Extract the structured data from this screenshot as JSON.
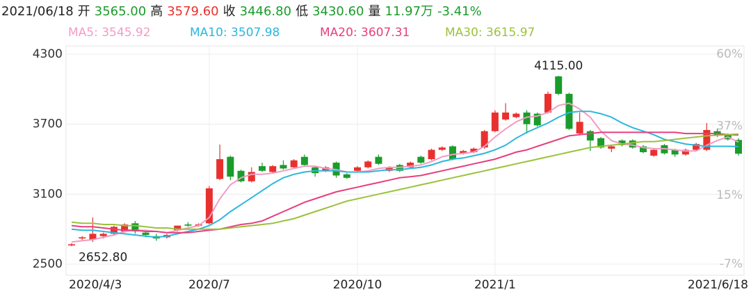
{
  "header": [
    {
      "text": "2021/06/18",
      "color": "#222"
    },
    {
      "text": "开",
      "color": "#222"
    },
    {
      "text": "3565.00",
      "color": "#1a9c2b"
    },
    {
      "text": "高",
      "color": "#222"
    },
    {
      "text": "3579.60",
      "color": "#e8312f"
    },
    {
      "text": "收",
      "color": "#222"
    },
    {
      "text": "3446.80",
      "color": "#1a9c2b"
    },
    {
      "text": "低",
      "color": "#222"
    },
    {
      "text": "3430.60",
      "color": "#1a9c2b"
    },
    {
      "text": "量",
      "color": "#222"
    },
    {
      "text": "11.97万",
      "color": "#1a9c2b"
    },
    {
      "text": "-3.41%",
      "color": "#1a9c2b"
    }
  ],
  "chart_data": {
    "type": "candlestick",
    "categories": [
      "2020/4/3",
      null,
      null,
      null,
      null,
      null,
      null,
      null,
      null,
      null,
      null,
      null,
      null,
      "2020/7",
      null,
      null,
      null,
      null,
      null,
      null,
      null,
      null,
      null,
      null,
      null,
      null,
      null,
      "2020/10",
      null,
      null,
      null,
      null,
      null,
      null,
      null,
      null,
      null,
      null,
      null,
      null,
      "2021/1",
      null,
      null,
      null,
      null,
      null,
      null,
      null,
      null,
      null,
      null,
      null,
      null,
      null,
      null,
      null,
      null,
      null,
      null,
      null,
      null,
      null,
      null,
      "2021/6/18"
    ],
    "up_color": "#e8312f",
    "down_color": "#1a9c2b",
    "open": [
      2660,
      2720,
      2710,
      2740,
      2760,
      2780,
      2850,
      2770,
      2740,
      2730,
      2790,
      2840,
      2830,
      2850,
      3230,
      3420,
      3300,
      3210,
      3340,
      3290,
      3350,
      3330,
      3420,
      3330,
      3300,
      3370,
      3270,
      3300,
      3330,
      3420,
      3300,
      3350,
      3330,
      3420,
      3400,
      3480,
      3510,
      3450,
      3460,
      3500,
      3640,
      3740,
      3760,
      3800,
      3790,
      3800,
      4110,
      3960,
      3620,
      3640,
      3580,
      3490,
      3560,
      3560,
      3510,
      3430,
      3520,
      3480,
      3440,
      3480,
      3480,
      3640,
      3610,
      3565
    ],
    "high": [
      2680,
      2740,
      2900,
      2770,
      2830,
      2850,
      2870,
      2790,
      2760,
      2760,
      2830,
      2860,
      2850,
      3170,
      3525,
      3430,
      3310,
      3330,
      3370,
      3350,
      3390,
      3400,
      3440,
      3340,
      3340,
      3380,
      3280,
      3340,
      3390,
      3440,
      3340,
      3360,
      3380,
      3430,
      3490,
      3510,
      3520,
      3480,
      3500,
      3650,
      3820,
      3880,
      3800,
      3820,
      3800,
      3980,
      4115,
      3970,
      3800,
      3650,
      3590,
      3520,
      3570,
      3570,
      3520,
      3490,
      3530,
      3490,
      3490,
      3540,
      3710,
      3660,
      3620,
      3579.6
    ],
    "low": [
      2652.8,
      2700,
      2690,
      2720,
      2750,
      2770,
      2760,
      2730,
      2700,
      2720,
      2780,
      2820,
      2820,
      2840,
      3220,
      3220,
      3200,
      3200,
      3290,
      3280,
      3310,
      3320,
      3340,
      3250,
      3290,
      3240,
      3230,
      3290,
      3320,
      3350,
      3290,
      3290,
      3320,
      3360,
      3390,
      3470,
      3390,
      3440,
      3450,
      3490,
      3630,
      3730,
      3750,
      3620,
      3680,
      3790,
      3950,
      3650,
      3610,
      3470,
      3490,
      3460,
      3510,
      3490,
      3450,
      3420,
      3440,
      3420,
      3430,
      3470,
      3470,
      3590,
      3560,
      3430.6
    ],
    "close": [
      2670,
      2730,
      2760,
      2760,
      2820,
      2840,
      2780,
      2750,
      2720,
      2750,
      2830,
      2830,
      2840,
      3150,
      3400,
      3250,
      3210,
      3290,
      3300,
      3340,
      3320,
      3390,
      3350,
      3280,
      3330,
      3260,
      3240,
      3330,
      3380,
      3360,
      3330,
      3300,
      3370,
      3370,
      3480,
      3500,
      3400,
      3470,
      3490,
      3640,
      3800,
      3800,
      3790,
      3700,
      3690,
      3960,
      3960,
      3660,
      3720,
      3560,
      3500,
      3510,
      3520,
      3500,
      3460,
      3480,
      3450,
      3440,
      3480,
      3530,
      3650,
      3600,
      3570,
      3446.8
    ],
    "series": [
      {
        "label": "MA5: 3545.92",
        "color": "#f29cc3",
        "values": [
          2690,
          2700,
          2710,
          2730,
          2750,
          2780,
          2790,
          2790,
          2780,
          2770,
          2790,
          2810,
          2830,
          2900,
          3060,
          3180,
          3240,
          3270,
          3270,
          3280,
          3300,
          3320,
          3340,
          3340,
          3320,
          3310,
          3290,
          3290,
          3300,
          3320,
          3330,
          3330,
          3340,
          3350,
          3380,
          3420,
          3440,
          3450,
          3460,
          3510,
          3590,
          3660,
          3720,
          3760,
          3770,
          3800,
          3860,
          3880,
          3830,
          3760,
          3640,
          3560,
          3530,
          3520,
          3500,
          3490,
          3490,
          3480,
          3470,
          3470,
          3520,
          3560,
          3590,
          3545.92
        ]
      },
      {
        "label": "MA10: 3507.98",
        "color": "#2bb7dc",
        "values": [
          2800,
          2790,
          2790,
          2780,
          2770,
          2760,
          2750,
          2740,
          2730,
          2740,
          2760,
          2780,
          2800,
          2830,
          2880,
          2950,
          3010,
          3070,
          3130,
          3190,
          3240,
          3270,
          3290,
          3300,
          3300,
          3300,
          3290,
          3290,
          3290,
          3300,
          3310,
          3310,
          3320,
          3330,
          3350,
          3380,
          3400,
          3410,
          3430,
          3450,
          3480,
          3520,
          3580,
          3630,
          3670,
          3710,
          3760,
          3800,
          3810,
          3810,
          3790,
          3760,
          3710,
          3670,
          3640,
          3610,
          3570,
          3550,
          3530,
          3520,
          3510,
          3510,
          3510,
          3507.98
        ]
      },
      {
        "label": "MA20: 3607.31",
        "color": "#e63f7e",
        "values": [
          2830,
          2820,
          2820,
          2810,
          2800,
          2790,
          2790,
          2780,
          2780,
          2770,
          2770,
          2770,
          2780,
          2790,
          2800,
          2820,
          2840,
          2850,
          2870,
          2910,
          2950,
          2990,
          3030,
          3060,
          3090,
          3120,
          3140,
          3160,
          3180,
          3200,
          3220,
          3240,
          3250,
          3260,
          3280,
          3300,
          3320,
          3340,
          3360,
          3380,
          3400,
          3430,
          3460,
          3480,
          3510,
          3540,
          3570,
          3600,
          3610,
          3620,
          3630,
          3630,
          3630,
          3630,
          3630,
          3630,
          3630,
          3630,
          3620,
          3620,
          3620,
          3620,
          3610,
          3607.31
        ]
      },
      {
        "label": "MA30: 3615.97",
        "color": "#9bc23b",
        "values": [
          2860,
          2850,
          2850,
          2840,
          2840,
          2830,
          2830,
          2820,
          2810,
          2810,
          2800,
          2800,
          2800,
          2800,
          2800,
          2810,
          2820,
          2830,
          2840,
          2850,
          2870,
          2890,
          2920,
          2950,
          2980,
          3010,
          3040,
          3060,
          3080,
          3100,
          3120,
          3140,
          3160,
          3180,
          3200,
          3220,
          3240,
          3260,
          3280,
          3300,
          3320,
          3340,
          3360,
          3380,
          3400,
          3420,
          3440,
          3460,
          3480,
          3500,
          3510,
          3520,
          3530,
          3540,
          3550,
          3550,
          3560,
          3570,
          3580,
          3590,
          3600,
          3605,
          3610,
          3615.97
        ]
      }
    ],
    "max_label": "4115.00",
    "min_label": "2652.80",
    "ylim": [
      2500,
      4300
    ],
    "yticks": [
      2500,
      3100,
      3700,
      4300
    ],
    "y2lim": [
      -7,
      60
    ],
    "y2ticks": [
      {
        "value": -7,
        "label": "-7%"
      },
      {
        "value": 15,
        "label": "15%"
      },
      {
        "value": 37,
        "label": "37%"
      },
      {
        "value": 60,
        "label": "60%"
      }
    ],
    "grid": true
  }
}
